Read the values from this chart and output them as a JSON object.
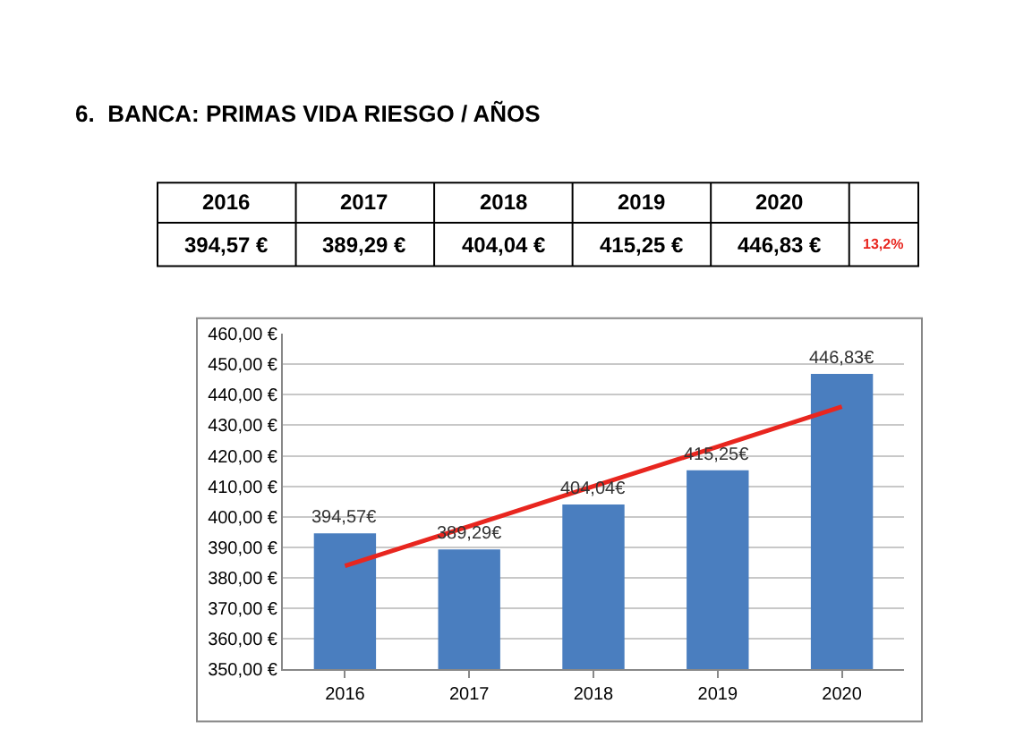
{
  "chart_data": {
    "type": "bar",
    "title": "6.  BANCA: PRIMAS VIDA RIESGO / AÑOS",
    "categories": [
      "2016",
      "2017",
      "2018",
      "2019",
      "2020"
    ],
    "annotations": [
      "2016",
      "2017",
      "2018",
      "2019",
      "2020",
      "394,57 €",
      "389,29 €",
      "404,04 €",
      "415,25 €",
      "446,83 €",
      "13,2%"
    ],
    "series": [
      {
        "type": "bar",
        "color": "#4a7ebf",
        "values": [
          394.57,
          389.29,
          404.04,
          415.25,
          446.83
        ],
        "value_labels": [
          "394,57€",
          "389,29€",
          "404,04€",
          "415,25€",
          "446,83€"
        ]
      },
      {
        "type": "line",
        "color": "#e8261f",
        "values": [
          383.9,
          396.9,
          410.0,
          423.0,
          436.1
        ]
      }
    ],
    "ylim": [
      350,
      460
    ],
    "yticks": [
      {
        "value": 350,
        "label": "350,00 €"
      },
      {
        "value": 360,
        "label": "360,00 €"
      },
      {
        "value": 370,
        "label": "370,00 €"
      },
      {
        "value": 380,
        "label": "380,00 €"
      },
      {
        "value": 390,
        "label": "390,00 €"
      },
      {
        "value": 400,
        "label": "400,00 €"
      },
      {
        "value": 410,
        "label": "410,00 €"
      },
      {
        "value": 420,
        "label": "420,00 €"
      },
      {
        "value": 430,
        "label": "430,00 €"
      },
      {
        "value": 440,
        "label": "440,00 €"
      },
      {
        "value": 450,
        "label": "450,00 €"
      },
      {
        "value": 460,
        "label": "460,00 €"
      }
    ],
    "grid": "y"
  }
}
